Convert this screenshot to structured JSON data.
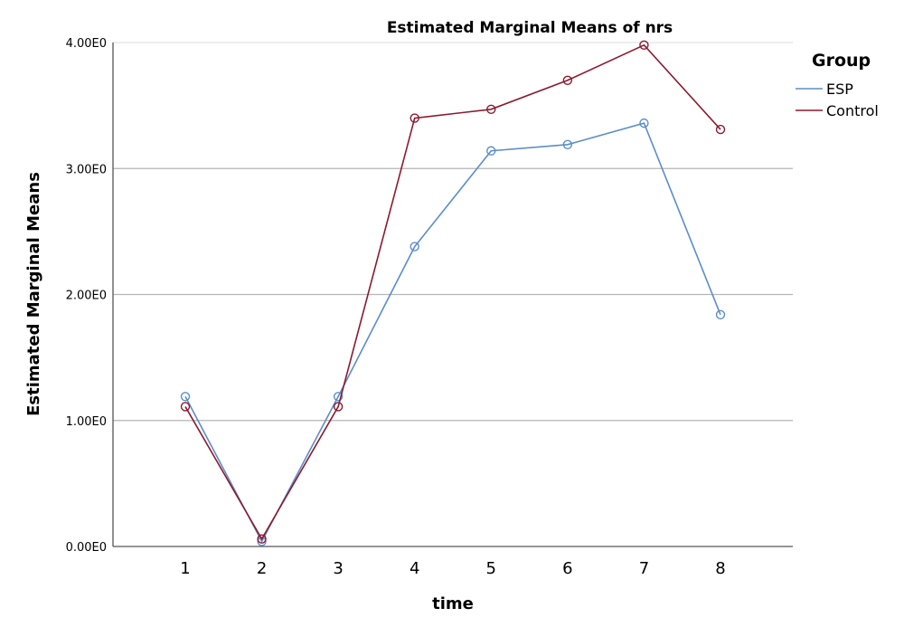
{
  "chart_data": {
    "type": "line",
    "title": "Estimated Marginal Means of nrs",
    "xlabel": "time",
    "ylabel": "Estimated Marginal Means",
    "categories": [
      "1",
      "2",
      "3",
      "4",
      "5",
      "6",
      "7",
      "8"
    ],
    "y_ticks": [
      "0.00E0",
      "1.00E0",
      "2.00E0",
      "3.00E0",
      "4.00E0"
    ],
    "ylim": [
      0,
      4
    ],
    "grid": "horizontal",
    "legend_position": "right",
    "legend_title": "Group",
    "series": [
      {
        "name": "ESP",
        "color": "#5b8ec8",
        "values": [
          1.19,
          0.04,
          1.19,
          2.38,
          3.14,
          3.19,
          3.36,
          1.84
        ]
      },
      {
        "name": "Control",
        "color": "#8b1a2f",
        "values": [
          1.11,
          0.06,
          1.11,
          3.4,
          3.47,
          3.7,
          3.98,
          3.31
        ]
      }
    ]
  }
}
